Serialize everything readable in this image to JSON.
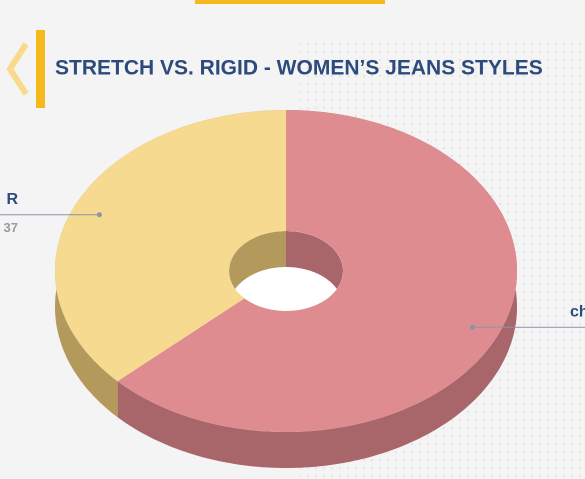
{
  "chart_data": {
    "type": "pie",
    "title": "STRETCH VS. RIGID - WOMEN’S JEANS STYLES",
    "categories": [
      "ch",
      "R"
    ],
    "values": [
      63,
      37
    ],
    "value_labels": [
      null,
      "37"
    ],
    "colors": [
      "#df8c90",
      "#f5da90"
    ],
    "side_colors": [
      "#a8666b",
      "#b39a5c"
    ],
    "donut": true
  }
}
